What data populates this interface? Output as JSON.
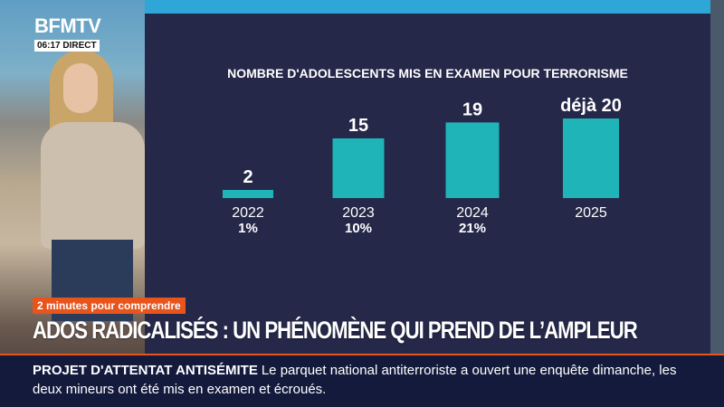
{
  "channel": {
    "brand": "BFMTV",
    "time": "06:17",
    "status": "DIRECT"
  },
  "colors": {
    "bar": "#1fb5b8",
    "screen": "#252849",
    "tag": "#e8551c",
    "ticker": "#141a3c"
  },
  "chart_data": {
    "type": "bar",
    "title": "NOMBRE D'ADOLESCENTS MIS EN EXAMEN POUR TERRORISME",
    "categories": [
      "2022",
      "2023",
      "2024",
      "2025"
    ],
    "values": [
      2,
      15,
      19,
      20
    ],
    "value_labels": [
      "2",
      "15",
      "19",
      "déjà 20"
    ],
    "secondary_labels": [
      "1%",
      "10%",
      "21%",
      ""
    ],
    "ylim": [
      0,
      20
    ],
    "grid": false,
    "legend": "none"
  },
  "banner": {
    "tag": "2 minutes pour comprendre",
    "headline": "ADOS RADICALISÉS : UN PHÉNOMÈNE QUI PREND DE L’AMPLEUR"
  },
  "ticker": {
    "label": "PROJET D'ATTENTAT ANTISÉMITE",
    "text": "Le parquet national antiterroriste a ouvert une enquête dimanche, les deux mineurs ont été mis en examen et écroués."
  }
}
